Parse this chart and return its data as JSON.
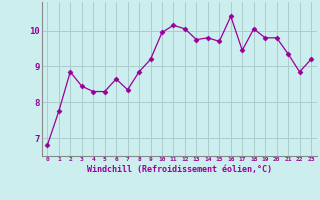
{
  "x": [
    0,
    1,
    2,
    3,
    4,
    5,
    6,
    7,
    8,
    9,
    10,
    11,
    12,
    13,
    14,
    15,
    16,
    17,
    18,
    19,
    20,
    21,
    22,
    23
  ],
  "y": [
    6.8,
    7.75,
    8.85,
    8.45,
    8.3,
    8.3,
    8.65,
    8.35,
    8.85,
    9.2,
    9.95,
    10.15,
    10.05,
    9.75,
    9.8,
    9.7,
    10.4,
    9.45,
    10.05,
    9.8,
    9.8,
    9.35,
    8.85,
    9.2
  ],
  "line_color": "#990099",
  "marker": "D",
  "marker_size": 2.5,
  "background_color": "#cceeee",
  "grid_color": "#aacccc",
  "xlabel": "Windchill (Refroidissement éolien,°C)",
  "xlabel_color": "#990099",
  "tick_color": "#990099",
  "ylim": [
    6.5,
    10.8
  ],
  "xlim": [
    -0.5,
    23.5
  ],
  "yticks": [
    7,
    8,
    9,
    10
  ],
  "xtick_labels": [
    "0",
    "1",
    "2",
    "3",
    "4",
    "5",
    "6",
    "7",
    "8",
    "9",
    "10",
    "11",
    "12",
    "13",
    "14",
    "15",
    "16",
    "17",
    "18",
    "19",
    "20",
    "21",
    "22",
    "23"
  ]
}
